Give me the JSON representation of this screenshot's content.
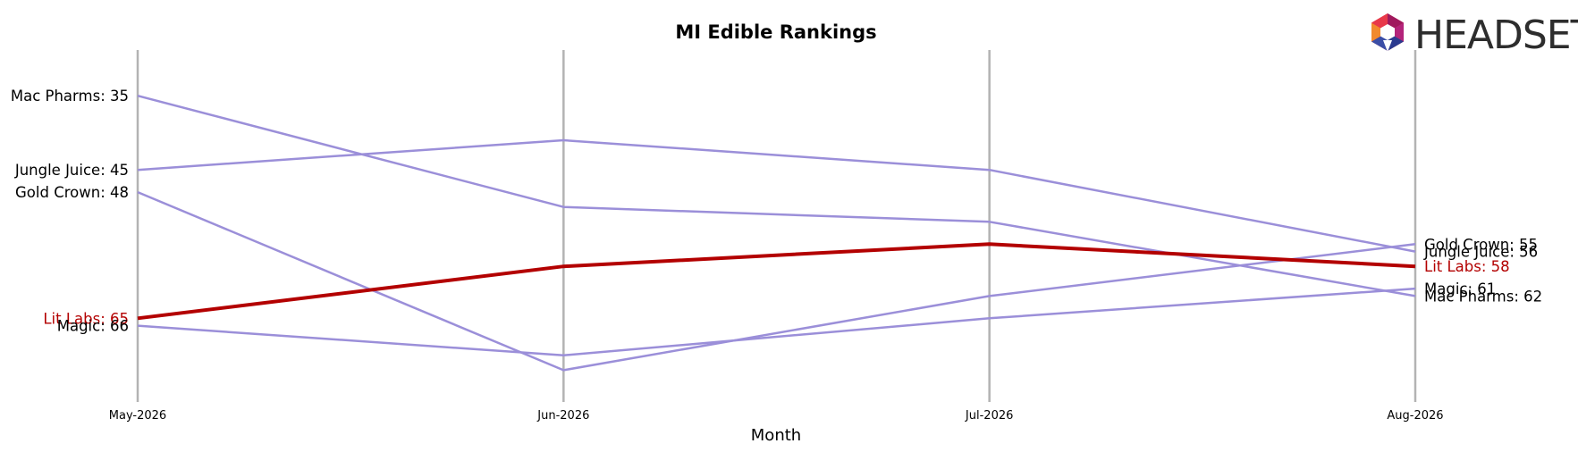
{
  "colors": {
    "highlight": "#b30000",
    "other": "#9b8fd9",
    "vline": "#b3b3b3",
    "label": "#000000"
  },
  "logo": {
    "text": "HEADSET",
    "icon": "headset-hexagon-logo-icon"
  },
  "chart_data": {
    "type": "line",
    "title": "MI Edible Rankings",
    "xlabel": "Month",
    "ylabel": "",
    "categories": [
      "May-2026",
      "Jun-2026",
      "Jul-2026",
      "Aug-2026"
    ],
    "y_inverted": true,
    "ylim": [
      31,
      74
    ],
    "grid": false,
    "highlight_series": "Lit Labs",
    "series": [
      {
        "name": "Mac Pharms",
        "values": [
          35,
          50,
          52,
          62
        ],
        "start_label": "Mac Pharms: 35",
        "end_label": "Mac Pharms: 62"
      },
      {
        "name": "Jungle Juice",
        "values": [
          45,
          41,
          45,
          56
        ],
        "start_label": "Jungle Juice: 45",
        "end_label": "Jungle Juice: 56"
      },
      {
        "name": "Gold Crown",
        "values": [
          48,
          72,
          62,
          55
        ],
        "start_label": "Gold Crown: 48",
        "end_label": "Gold Crown: 55"
      },
      {
        "name": "Lit Labs",
        "values": [
          65,
          58,
          55,
          58
        ],
        "start_label": "Lit Labs: 65",
        "end_label": "Lit Labs: 58"
      },
      {
        "name": "Magic",
        "values": [
          66,
          70,
          65,
          61
        ],
        "start_label": "Magic: 66",
        "end_label": "Magic: 61"
      }
    ]
  }
}
